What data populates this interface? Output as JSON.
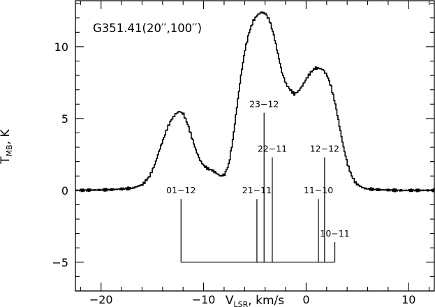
{
  "chart_data": {
    "type": "line",
    "annotation": "G351.41(20′′,100′′)",
    "xlabel": {
      "main": "V",
      "subscript": "LSR",
      "suffix": ", km/s"
    },
    "ylabel": {
      "main": "T",
      "subscript": "MB",
      "suffix": ", K"
    },
    "xlim": [
      -22.5,
      12.5
    ],
    "ylim": [
      -7,
      13.2
    ],
    "x_ticks": [
      {
        "value": -20,
        "label": "−20"
      },
      {
        "value": -10,
        "label": "−10"
      },
      {
        "value": 0,
        "label": "0"
      },
      {
        "value": 10,
        "label": "10"
      }
    ],
    "y_ticks": [
      {
        "value": -5,
        "label": "−5"
      },
      {
        "value": 0,
        "label": "0"
      },
      {
        "value": 5,
        "label": "5"
      },
      {
        "value": 10,
        "label": "10"
      }
    ],
    "series": [
      {
        "style": "histogram-step",
        "x": [
          -22.5,
          -21,
          -19,
          -17,
          -16,
          -15.3,
          -14.8,
          -14.4,
          -14,
          -13.6,
          -13.2,
          -12.8,
          -12.4,
          -12,
          -11.6,
          -11.2,
          -10.8,
          -10.4,
          -10,
          -9.6,
          -9.2,
          -8.8,
          -8.4,
          -8,
          -7.6,
          -7.2,
          -6.8,
          -6.4,
          -6,
          -5.6,
          -5.2,
          -4.8,
          -4.4,
          -4,
          -3.6,
          -3.2,
          -2.8,
          -2.4,
          -2,
          -1.6,
          -1.2,
          -0.8,
          -0.4,
          0,
          0.4,
          0.8,
          1.2,
          1.6,
          2,
          2.4,
          2.8,
          3.2,
          3.6,
          4,
          4.4,
          4.8,
          5.2,
          5.6,
          6,
          7,
          8,
          9,
          10,
          11,
          12,
          12.5
        ],
        "y": [
          0,
          0.02,
          0.05,
          0.15,
          0.4,
          1,
          1.8,
          2.7,
          3.5,
          4.3,
          4.9,
          5.3,
          5.5,
          5.3,
          4.6,
          3.7,
          2.8,
          2.1,
          1.7,
          1.5,
          1.4,
          1.2,
          1,
          1.1,
          1.8,
          3.5,
          5.8,
          8,
          9.8,
          11,
          11.8,
          12.2,
          12.4,
          12.3,
          11.8,
          10.8,
          9.5,
          8.2,
          7.4,
          7,
          6.7,
          6.9,
          7.3,
          7.8,
          8.2,
          8.5,
          8.5,
          8.4,
          8,
          7.2,
          6,
          4.5,
          3,
          1.8,
          1,
          0.5,
          0.3,
          0.15,
          0.1,
          0.05,
          0.02,
          0,
          0,
          0,
          0,
          0
        ]
      }
    ],
    "hfs_components": {
      "baseline": -5,
      "items": [
        {
          "label": "01−12",
          "x": -12.2,
          "top": -0.6
        },
        {
          "label": "21−11",
          "x": -4.8,
          "top": -0.6
        },
        {
          "label": "23−12",
          "x": -4.1,
          "top": 5.4
        },
        {
          "label": "22−11",
          "x": -3.3,
          "top": 2.3
        },
        {
          "label": "11−10",
          "x": 1.2,
          "top": -0.6
        },
        {
          "label": "12−12",
          "x": 1.8,
          "top": 2.3
        },
        {
          "label": "10−11",
          "x": 2.8,
          "top": -3.6
        }
      ]
    }
  }
}
